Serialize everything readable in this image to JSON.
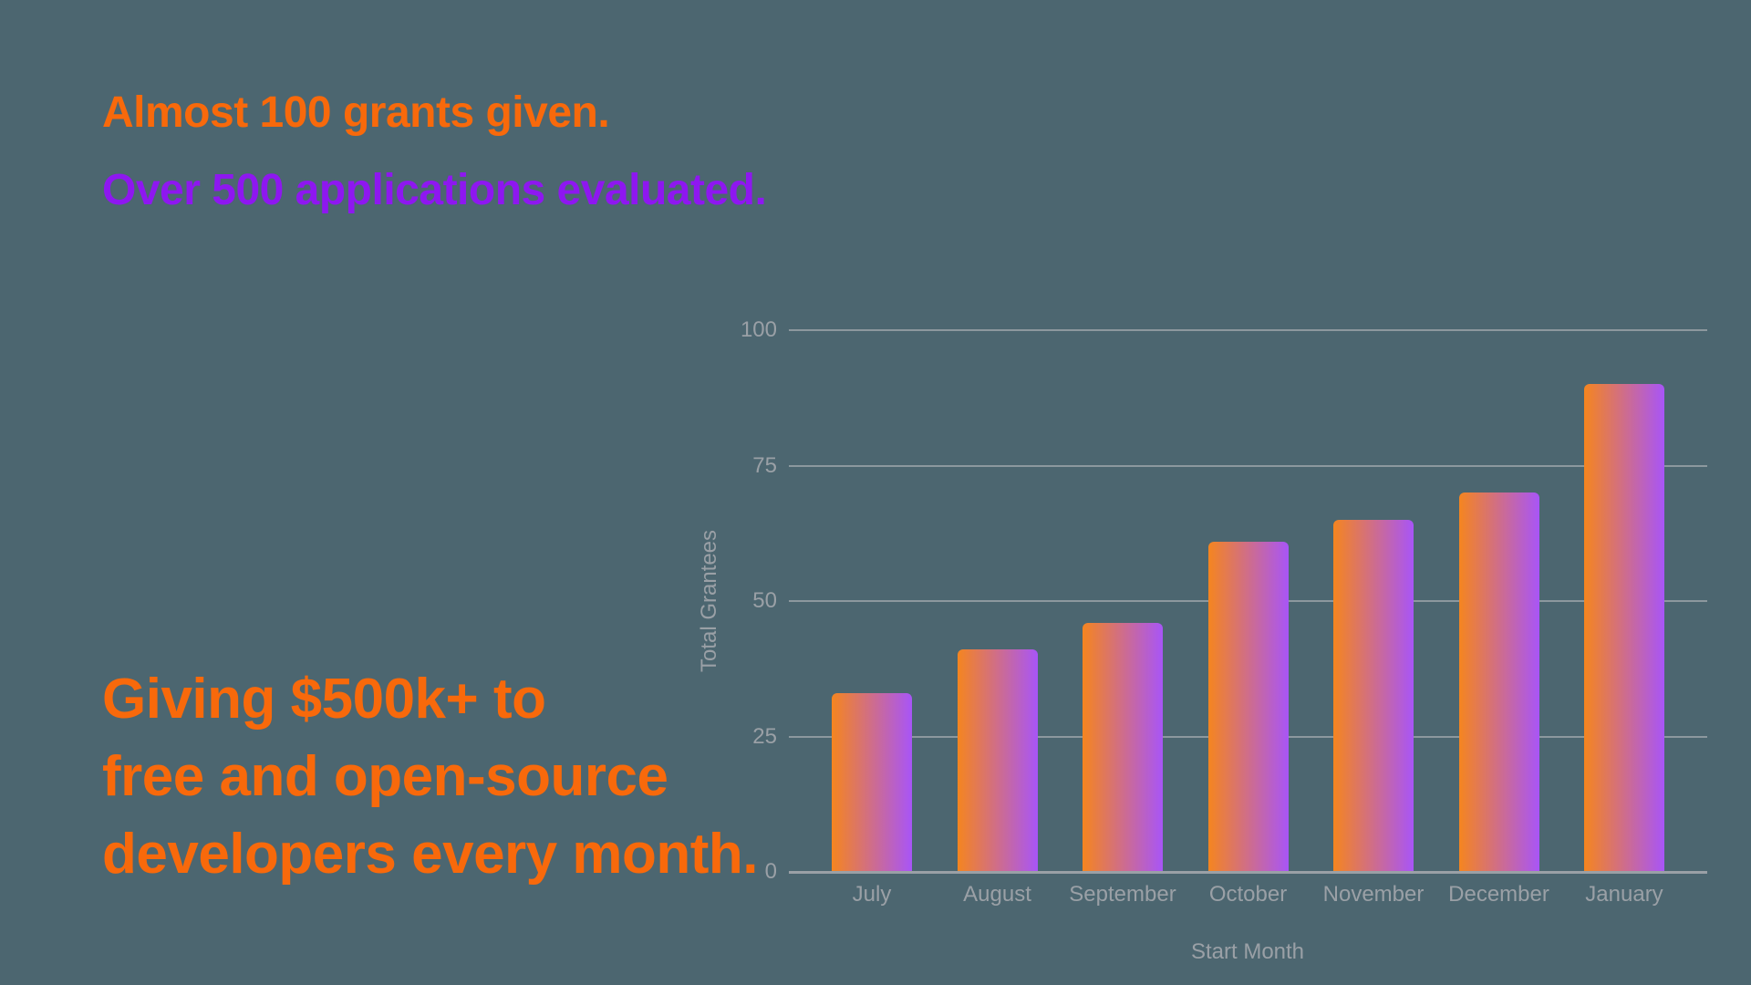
{
  "colors": {
    "background": "#4C6670",
    "heading_orange": "#F8690B",
    "heading_purple": "#8E17F0",
    "axis_text": "#9AA0A6",
    "gridline": "#A2A9AE",
    "axis_line": "#9AA0A6",
    "bar_gradient_start": "#F5851F",
    "bar_gradient_end": "#A855F7"
  },
  "headline": {
    "line1": "Almost 100 grants given.",
    "line2": "Over 500 applications evaluated."
  },
  "stats": {
    "line1": "Giving $500k+ to",
    "line2": "free and open-source",
    "line3": "developers every month."
  },
  "chart_data": {
    "type": "bar",
    "title": "",
    "categories": [
      "July",
      "August",
      "September",
      "October",
      "November",
      "December",
      "January"
    ],
    "values": [
      33,
      41,
      46,
      61,
      65,
      70,
      90
    ],
    "xlabel": "Start Month",
    "ylabel": "Total Grantees",
    "ylim": [
      0,
      100
    ],
    "yticks": [
      0,
      25,
      50,
      75,
      100
    ],
    "grid": true,
    "legend": "none",
    "bar_gradient": [
      "#F5851F",
      "#A855F7"
    ]
  }
}
